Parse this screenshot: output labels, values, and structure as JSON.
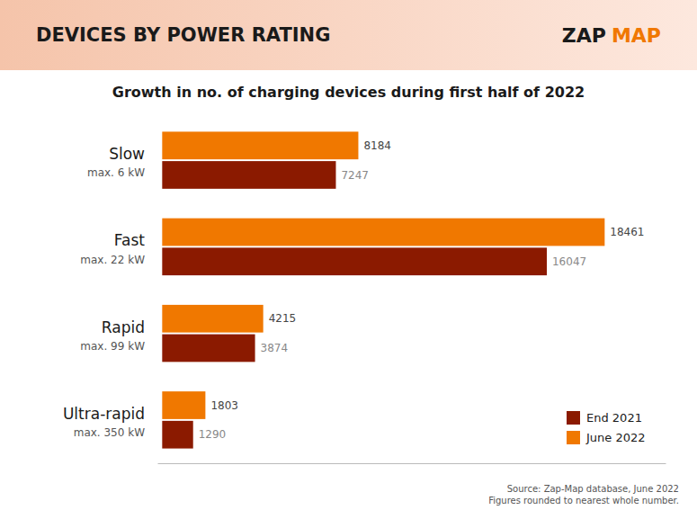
{
  "chart_data": {
    "type": "bar",
    "orientation": "horizontal",
    "title": "Growth in no. of charging devices during first half of 2022",
    "subtitle": "DEVICES BY POWER RATING",
    "categories": [
      "Slow",
      "Fast",
      "Rapid",
      "Ultra-rapid"
    ],
    "series": [
      {
        "name": "End 2021",
        "color": "#8b1a00",
        "values": [
          7247,
          16047,
          3874,
          1290
        ]
      },
      {
        "name": "June 2022",
        "color": "#f07800",
        "values": [
          8184,
          18461,
          4215,
          1803
        ]
      }
    ],
    "annotations": [
      "max. 6 kW",
      "max. 22 kW",
      "max. 99 kW",
      "max. 350 kW",
      "ZAP",
      "MAP",
      "Source: Zap-Map database, June 2022",
      "Figures rounded to nearest whole number."
    ],
    "xlim": [
      -200,
      21000
    ],
    "tick_labels": false,
    "data_labels": true,
    "grid": false,
    "legend": "lower right"
  }
}
